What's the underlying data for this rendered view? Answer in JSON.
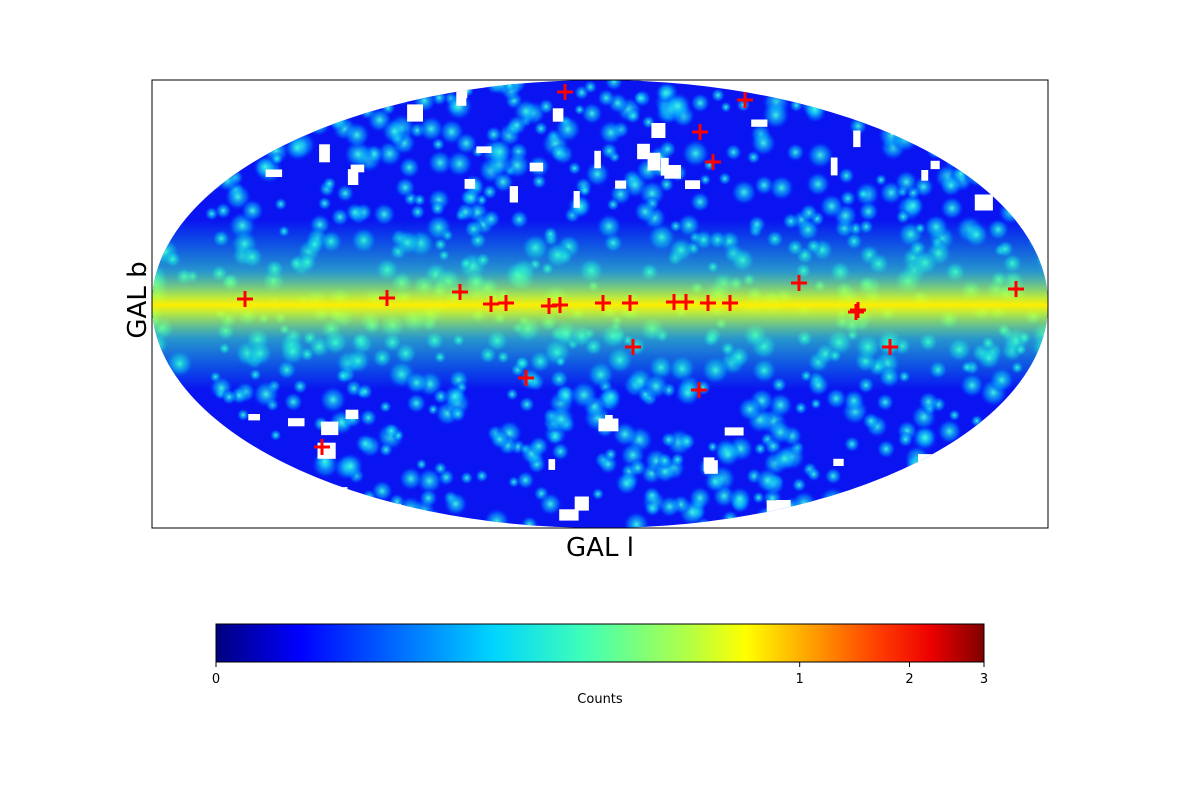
{
  "chart_data": {
    "type": "heatmap",
    "projection": "mollweide",
    "coordinate_system": "galactic",
    "xlabel": "GAL l",
    "ylabel": "GAL b",
    "colormap": "jet",
    "colorbar": {
      "label": "Counts",
      "ticks": [
        {
          "value": 0,
          "label": "0"
        },
        {
          "value": 1,
          "label": "1"
        },
        {
          "value": 2,
          "label": "2"
        },
        {
          "value": 3,
          "label": "3"
        }
      ],
      "range": [
        0,
        3
      ],
      "orientation": "horizontal",
      "placement": "bottom"
    },
    "markers": {
      "symbol": "+",
      "color": "#ff0000",
      "count": 26
    },
    "features": {
      "galactic_plane_band": "bright yellow-green band along b = 0",
      "empty_regions": "white gaps at high latitudes"
    }
  }
}
